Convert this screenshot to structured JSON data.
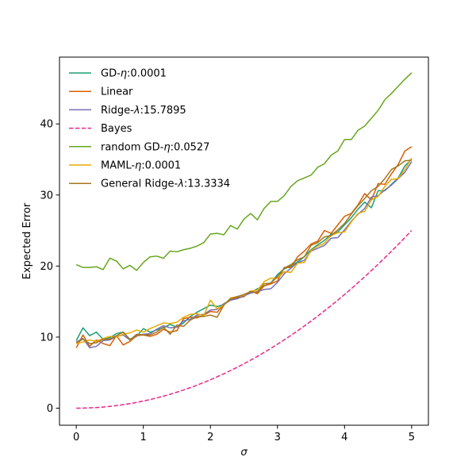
{
  "chart_data": {
    "type": "line",
    "title": "",
    "xlabel": "σ",
    "ylabel": "Expected Error",
    "xlim": [
      -0.25,
      5.25
    ],
    "ylim": [
      -2.4,
      49.4
    ],
    "xticks": [
      0,
      1,
      2,
      3,
      4,
      5
    ],
    "yticks": [
      0,
      10,
      20,
      30,
      40
    ],
    "grid": false,
    "legend_position": "top-left",
    "x": [
      0.0,
      0.1,
      0.2,
      0.3,
      0.4,
      0.5,
      0.6,
      0.7,
      0.8,
      0.9,
      1.0,
      1.1,
      1.2,
      1.3,
      1.4,
      1.5,
      1.6,
      1.7,
      1.8,
      1.9,
      2.0,
      2.1,
      2.2,
      2.3,
      2.4,
      2.5,
      2.6,
      2.7,
      2.8,
      2.9,
      3.0,
      3.1,
      3.2,
      3.3,
      3.4,
      3.5,
      3.6,
      3.7,
      3.8,
      3.9,
      4.0,
      4.1,
      4.2,
      4.3,
      4.4,
      4.5,
      4.6,
      4.7,
      4.8,
      4.9,
      5.0
    ],
    "series": [
      {
        "name": "GD-η:0.0001",
        "legend_parts": [
          {
            "t": "GD-",
            "i": false
          },
          {
            "t": "η",
            "i": true
          },
          {
            "t": ":0.0001",
            "i": false
          }
        ],
        "color": "#1b9e77",
        "dash": "solid",
        "values": [
          9.5,
          11.3,
          10.2,
          10.7,
          9.7,
          9.9,
          10.5,
          10.7,
          9.7,
          10.1,
          11.2,
          10.7,
          11.0,
          11.3,
          11.8,
          11.4,
          12.0,
          12.9,
          13.5,
          14.0,
          14.5,
          14.3,
          14.6,
          15.2,
          15.6,
          16.0,
          16.3,
          16.8,
          17.2,
          17.6,
          18.8,
          19.6,
          20.0,
          20.6,
          21.3,
          22.3,
          23.0,
          23.6,
          24.5,
          24.8,
          25.8,
          26.8,
          28.0,
          29.0,
          28.2,
          30.6,
          30.6,
          31.5,
          32.4,
          34.1,
          35.0
        ]
      },
      {
        "name": "Linear",
        "legend_parts": [
          {
            "t": "Linear",
            "i": false
          }
        ],
        "color": "#d95f02",
        "dash": "solid",
        "values": [
          8.5,
          10.3,
          8.7,
          9.6,
          9.1,
          8.8,
          10.2,
          8.9,
          9.4,
          10.2,
          10.3,
          10.1,
          10.4,
          11.1,
          10.7,
          10.9,
          12.6,
          12.8,
          12.7,
          13.1,
          13.6,
          13.5,
          14.6,
          15.4,
          15.5,
          15.7,
          16.5,
          16.1,
          17.2,
          17.5,
          17.9,
          19.8,
          19.8,
          21.3,
          22.1,
          23.1,
          23.5,
          25.0,
          24.6,
          25.8,
          27.0,
          27.4,
          28.6,
          30.2,
          29.3,
          31.6,
          31.5,
          33.0,
          34.3,
          36.2,
          36.8
        ]
      },
      {
        "name": "Ridge-λ:15.7895",
        "legend_parts": [
          {
            "t": "Ridge-",
            "i": false
          },
          {
            "t": "λ",
            "i": true
          },
          {
            "t": ":15.7895",
            "i": false
          }
        ],
        "color": "#7570b3",
        "dash": "solid",
        "values": [
          9.3,
          9.8,
          8.5,
          8.7,
          9.5,
          9.6,
          10.1,
          10.3,
          9.6,
          10.3,
          10.4,
          10.5,
          11.1,
          11.6,
          11.3,
          11.4,
          12.3,
          12.5,
          13.1,
          13.2,
          13.8,
          13.9,
          14.7,
          15.2,
          15.4,
          15.8,
          16.2,
          16.4,
          16.7,
          16.8,
          17.7,
          18.9,
          19.7,
          20.5,
          20.8,
          22.1,
          22.5,
          22.9,
          23.9,
          24.0,
          25.1,
          26.3,
          27.3,
          28.1,
          29.7,
          29.9,
          30.7,
          31.4,
          32.3,
          33.2,
          34.7
        ]
      },
      {
        "name": "Bayes",
        "legend_parts": [
          {
            "t": "Bayes",
            "i": false
          }
        ],
        "color": "#e7298a",
        "dash": "dashed",
        "values": [
          0.0,
          0.01,
          0.04,
          0.09,
          0.16,
          0.25,
          0.36,
          0.49,
          0.64,
          0.81,
          1.0,
          1.21,
          1.44,
          1.69,
          1.96,
          2.25,
          2.56,
          2.89,
          3.24,
          3.61,
          4.0,
          4.41,
          4.84,
          5.29,
          5.76,
          6.25,
          6.76,
          7.29,
          7.84,
          8.41,
          9.0,
          9.61,
          10.24,
          10.89,
          11.56,
          12.25,
          12.96,
          13.69,
          14.44,
          15.21,
          16.0,
          16.81,
          17.64,
          18.49,
          19.36,
          20.25,
          21.16,
          22.09,
          23.04,
          24.01,
          25.0
        ]
      },
      {
        "name": "random GD-η:0.0527",
        "legend_parts": [
          {
            "t": "random GD-",
            "i": false
          },
          {
            "t": "η",
            "i": true
          },
          {
            "t": ":0.0527",
            "i": false
          }
        ],
        "color": "#66a61e",
        "dash": "solid",
        "values": [
          20.2,
          19.8,
          19.8,
          19.9,
          19.5,
          21.1,
          20.7,
          19.6,
          20.1,
          19.4,
          20.5,
          21.3,
          21.4,
          21.1,
          22.1,
          22.0,
          22.3,
          22.5,
          22.8,
          23.3,
          24.5,
          24.6,
          24.4,
          25.7,
          25.2,
          26.6,
          27.4,
          26.5,
          28.1,
          29.1,
          29.1,
          29.9,
          31.2,
          32.0,
          32.4,
          32.8,
          33.9,
          34.4,
          35.6,
          36.2,
          37.8,
          37.8,
          39.1,
          39.7,
          40.8,
          41.9,
          43.4,
          44.3,
          45.3,
          46.3,
          47.2
        ]
      },
      {
        "name": "MAML-η:0.0001",
        "legend_parts": [
          {
            "t": "MAML-",
            "i": false
          },
          {
            "t": "η",
            "i": true
          },
          {
            "t": ":0.0001",
            "i": false
          }
        ],
        "color": "#e6ab02",
        "dash": "solid",
        "values": [
          9.1,
          9.3,
          9.6,
          9.4,
          9.8,
          10.1,
          10.0,
          10.4,
          10.6,
          11.0,
          10.7,
          11.2,
          11.6,
          12.0,
          11.9,
          12.1,
          12.8,
          13.2,
          13.3,
          13.0,
          15.2,
          14.0,
          14.5,
          15.5,
          15.7,
          15.9,
          16.5,
          16.6,
          17.8,
          18.3,
          18.3,
          19.2,
          19.1,
          20.4,
          20.5,
          22.2,
          22.8,
          23.2,
          24.3,
          24.7,
          24.8,
          26.2,
          27.4,
          27.7,
          29.3,
          29.8,
          31.2,
          32.2,
          32.3,
          33.6,
          35.2
        ]
      },
      {
        "name": "General Ridge-λ:13.3334",
        "legend_parts": [
          {
            "t": "General Ridge-",
            "i": false
          },
          {
            "t": "λ",
            "i": true
          },
          {
            "t": ":13.3334",
            "i": false
          }
        ],
        "color": "#a6761d",
        "dash": "solid",
        "values": [
          9.2,
          9.7,
          9.1,
          9.2,
          9.7,
          9.7,
          10.2,
          10.7,
          9.6,
          10.4,
          10.3,
          10.3,
          10.7,
          11.4,
          10.4,
          11.7,
          11.5,
          12.4,
          12.9,
          12.9,
          13.1,
          12.8,
          14.5,
          15.4,
          15.7,
          16.0,
          16.4,
          16.3,
          17.5,
          17.6,
          18.5,
          19.7,
          20.2,
          20.9,
          21.3,
          22.9,
          23.3,
          24.1,
          24.3,
          25.1,
          26.0,
          27.3,
          28.5,
          29.5,
          30.6,
          31.2,
          32.3,
          33.6,
          34.1,
          34.8,
          34.9
        ]
      }
    ]
  }
}
